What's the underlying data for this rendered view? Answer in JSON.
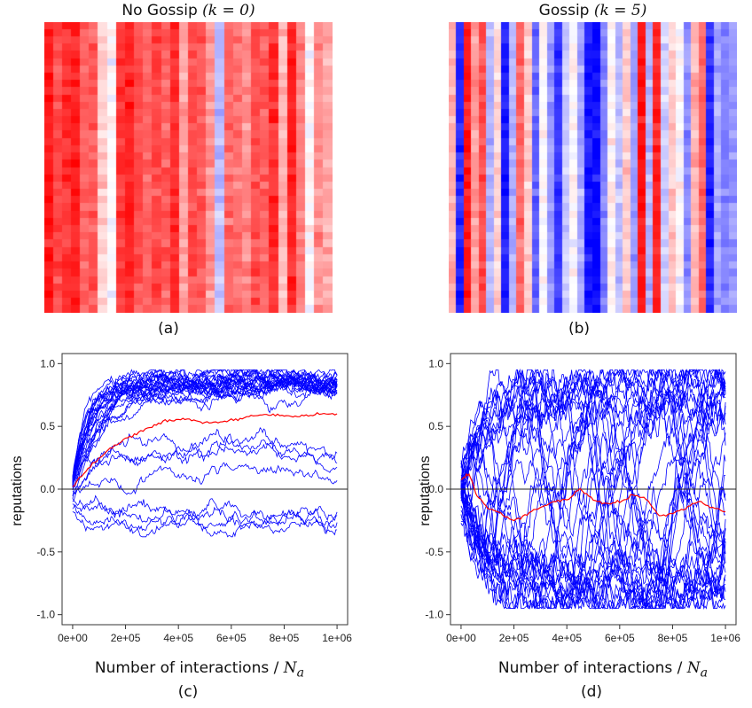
{
  "chart_data": [
    {
      "panel": "a",
      "type": "heatmap",
      "title_text": "No Gossip",
      "title_math": "(k = 0)",
      "label": "(a)",
      "colorscale": {
        "low": "#0000ff",
        "mid": "#ffffff",
        "high": "#ff0000"
      },
      "column_means": [
        0.92,
        0.7,
        0.8,
        0.85,
        0.6,
        0.65,
        0.2,
        0.0,
        0.78,
        0.85,
        0.7,
        0.6,
        0.72,
        0.62,
        0.82,
        0.35,
        0.7,
        0.65,
        0.4,
        -0.25,
        0.6,
        0.55,
        0.45,
        0.7,
        0.6,
        0.82,
        0.3,
        0.85,
        0.5,
        0.0,
        0.45,
        0.35
      ]
    },
    {
      "panel": "b",
      "type": "heatmap",
      "title_text": "Gossip",
      "title_math": "(k = 5)",
      "label": "(b)",
      "colorscale": {
        "low": "#0000ff",
        "mid": "#ffffff",
        "high": "#ff0000"
      },
      "column_means": [
        0.3,
        -0.85,
        0.9,
        0.4,
        0.7,
        -0.3,
        0.2,
        -0.9,
        -0.3,
        0.6,
        0.2,
        -0.6,
        0.0,
        -0.4,
        -0.8,
        -0.2,
        0.0,
        -0.35,
        -0.9,
        -0.95,
        -0.5,
        0.05,
        -0.25,
        0.2,
        -0.4,
        0.95,
        -0.3,
        0.85,
        -0.2,
        0.2,
        0.0,
        -0.45,
        0.3,
        0.6,
        -0.85,
        -0.35,
        -0.5,
        -0.4
      ]
    },
    {
      "panel": "c",
      "type": "line",
      "label": "(c)",
      "xlabel_text": "Number of interactions /",
      "xlabel_math": "N",
      "xlabel_sub": "a",
      "ylabel": "reputations",
      "xlim": [
        0,
        1000000
      ],
      "ylim": [
        -1.0,
        1.0
      ],
      "x_ticks": [
        "0e+00",
        "2e+05",
        "4e+05",
        "6e+05",
        "8e+05",
        "1e+06"
      ],
      "y_ticks": [
        "-1.0",
        "-0.5",
        "0.0",
        "0.5",
        "1.0"
      ],
      "series_color": "#0000ff",
      "mean_color": "#ff0000",
      "zero_line": true,
      "mean_series": {
        "x": [
          0,
          50000,
          100000,
          150000,
          200000,
          250000,
          300000,
          350000,
          400000,
          450000,
          500000,
          550000,
          600000,
          650000,
          700000,
          750000,
          800000,
          850000,
          900000,
          950000,
          1000000
        ],
        "y": [
          0.02,
          0.15,
          0.25,
          0.33,
          0.4,
          0.45,
          0.5,
          0.54,
          0.56,
          0.55,
          0.53,
          0.53,
          0.55,
          0.57,
          0.59,
          0.59,
          0.58,
          0.58,
          0.59,
          0.6,
          0.6
        ]
      },
      "group_summary": [
        {
          "count": 24,
          "start": 0.0,
          "level": 0.85
        },
        {
          "count": 3,
          "start": -0.05,
          "level": 0.35
        },
        {
          "count": 1,
          "start": -0.1,
          "level": 0.05
        },
        {
          "count": 4,
          "start": -0.15,
          "level": -0.22
        }
      ]
    },
    {
      "panel": "d",
      "type": "line",
      "label": "(d)",
      "xlabel_text": "Number of interactions /",
      "xlabel_math": "N",
      "xlabel_sub": "a",
      "ylabel": "reputations",
      "xlim": [
        0,
        1000000
      ],
      "ylim": [
        -1.0,
        1.0
      ],
      "x_ticks": [
        "0e+00",
        "2e+05",
        "4e+05",
        "6e+05",
        "8e+05",
        "1e+06"
      ],
      "y_ticks": [
        "-1.0",
        "-0.5",
        "0.0",
        "0.5",
        "1.0"
      ],
      "series_color": "#0000ff",
      "mean_color": "#ff0000",
      "zero_line": true,
      "mean_series": {
        "x": [
          0,
          30000,
          60000,
          100000,
          150000,
          200000,
          250000,
          300000,
          350000,
          400000,
          450000,
          500000,
          550000,
          600000,
          650000,
          700000,
          750000,
          800000,
          850000,
          900000,
          950000,
          1000000
        ],
        "y": [
          0.08,
          0.12,
          -0.05,
          -0.15,
          -0.2,
          -0.25,
          -0.2,
          -0.15,
          -0.1,
          -0.08,
          0.0,
          -0.08,
          -0.12,
          -0.1,
          -0.05,
          -0.08,
          -0.22,
          -0.2,
          -0.15,
          -0.1,
          -0.15,
          -0.18
        ]
      },
      "series_count": 38
    }
  ]
}
